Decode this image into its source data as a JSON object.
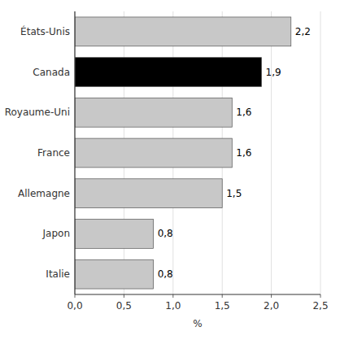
{
  "chart_data": {
    "type": "bar",
    "orientation": "horizontal",
    "categories": [
      "Italie",
      "Japon",
      "Allemagne",
      "France",
      "Royaume-Uni",
      "Canada",
      "États-Unis"
    ],
    "values": [
      0.8,
      0.8,
      1.5,
      1.6,
      1.6,
      1.9,
      2.2
    ],
    "value_labels": [
      "0,8",
      "0,8",
      "1,5",
      "1,6",
      "1,6",
      "1,9",
      "2,2"
    ],
    "data_labels": true,
    "colors": [
      "#c8c8c8",
      "#c8c8c8",
      "#c8c8c8",
      "#c8c8c8",
      "#c8c8c8",
      "#000000",
      "#c8c8c8"
    ],
    "xlabel": "%",
    "xlim": [
      0,
      2.5
    ],
    "xticks": [
      {
        "value": 0.0,
        "label": "0,0"
      },
      {
        "value": 0.5,
        "label": "0,5"
      },
      {
        "value": 1.0,
        "label": "1,0"
      },
      {
        "value": 1.5,
        "label": "1,5"
      },
      {
        "value": 2.0,
        "label": "2,0"
      },
      {
        "value": 2.5,
        "label": "2,5"
      }
    ],
    "grid": true
  }
}
